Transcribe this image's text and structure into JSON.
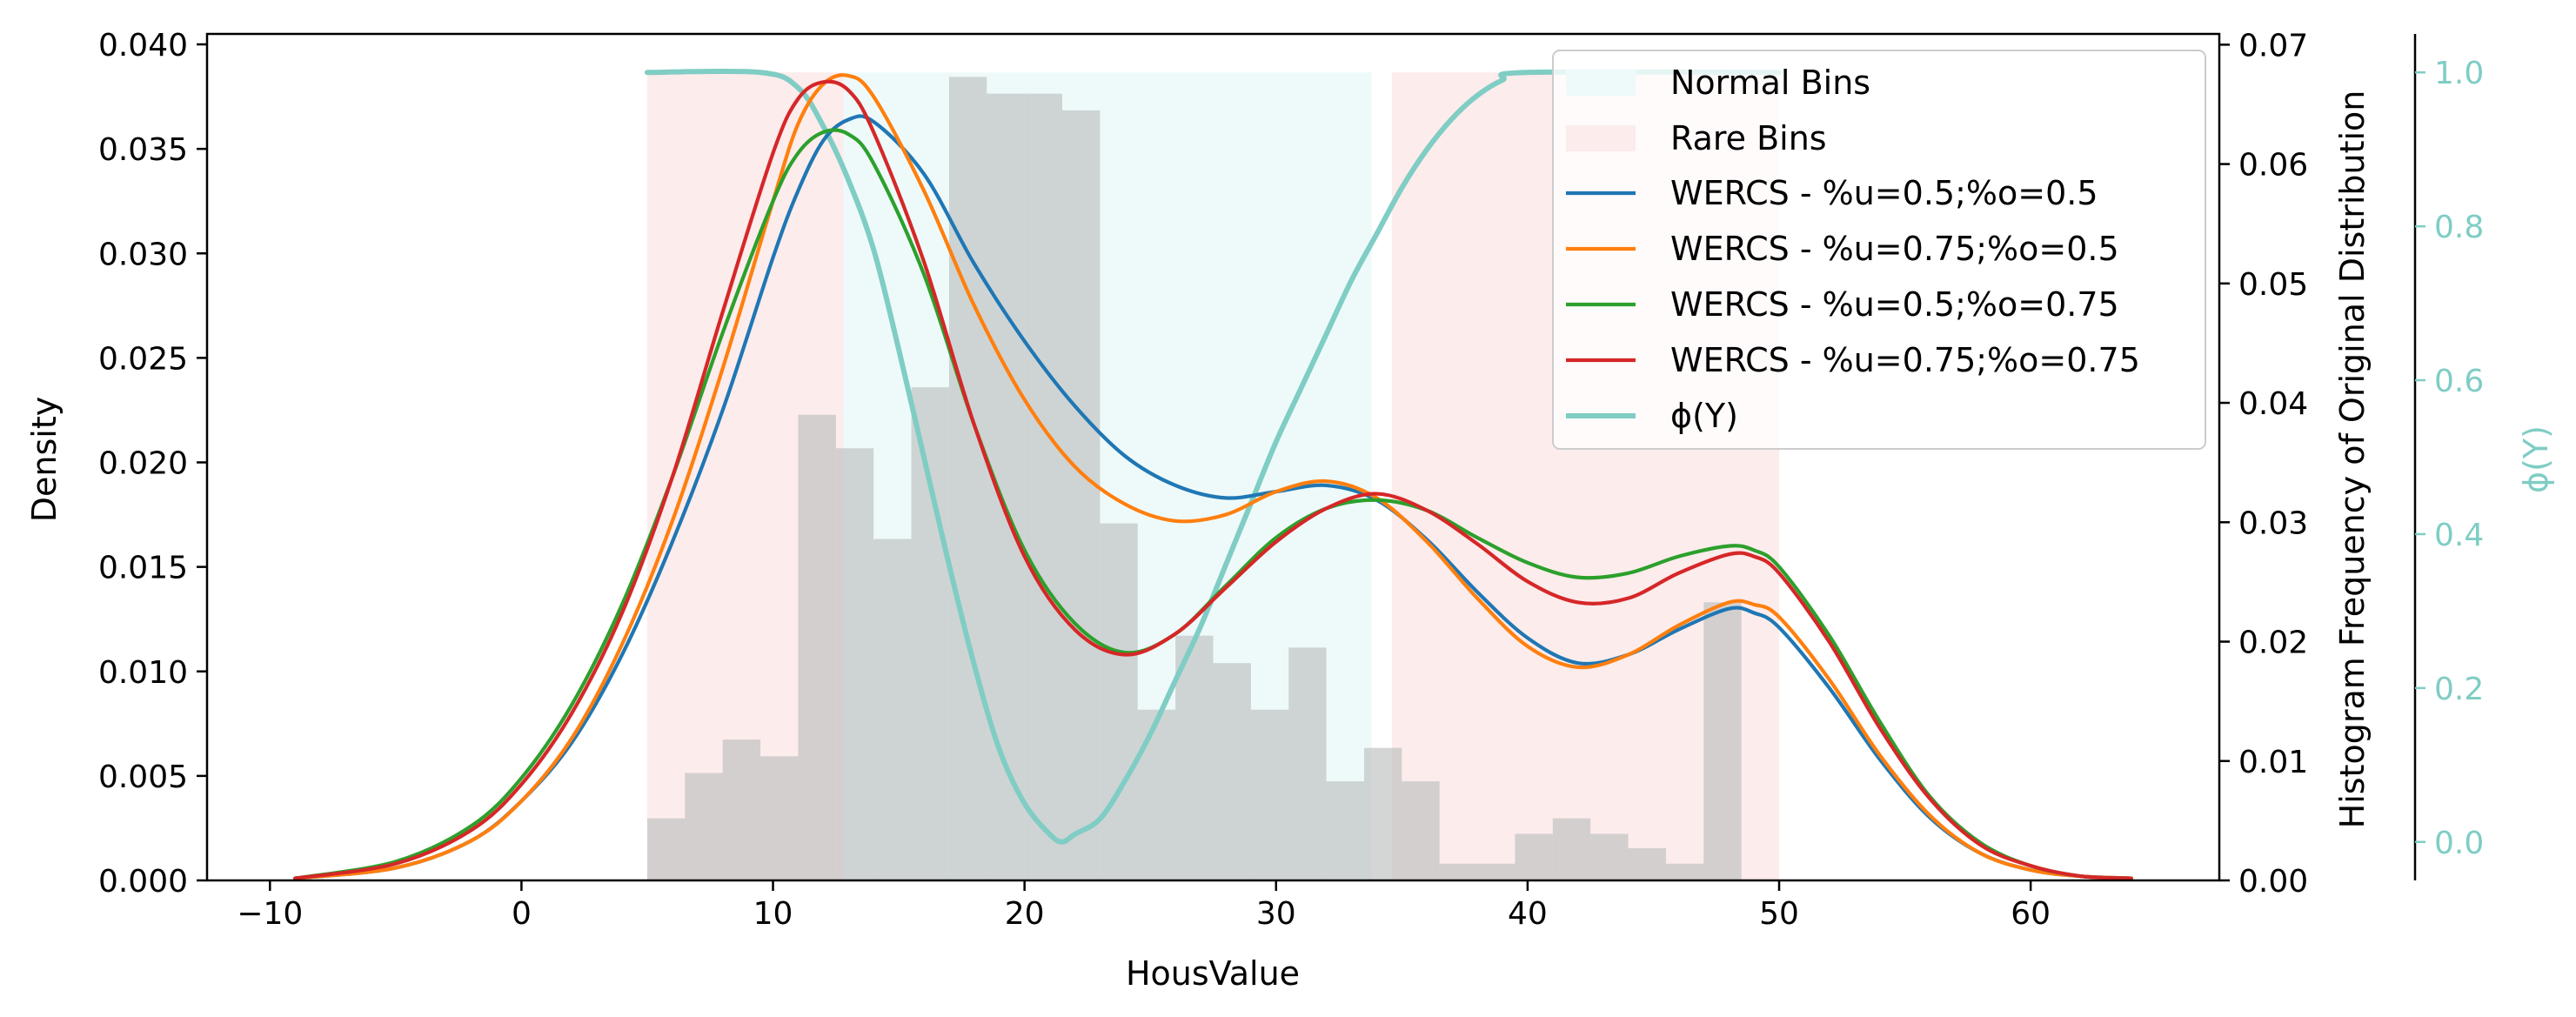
{
  "chart_data": {
    "type": "line",
    "xlabel": "HousValue",
    "ylabel": "Density",
    "y2label": "Histogram Frequency of Original Distribution",
    "y3label": "ϕ(Y)",
    "xlim": [
      -12.5,
      67.5
    ],
    "ylim": [
      0,
      0.0405
    ],
    "y2lim": [
      0,
      0.0709
    ],
    "y3lim": [
      -0.05,
      1.05
    ],
    "x_ticks": [
      -10,
      0,
      10,
      20,
      30,
      40,
      50,
      60
    ],
    "y_ticks": [
      "0.000",
      "0.005",
      "0.010",
      "0.015",
      "0.020",
      "0.025",
      "0.030",
      "0.035",
      "0.040"
    ],
    "y2_ticks": [
      "0.00",
      "0.01",
      "0.02",
      "0.03",
      "0.04",
      "0.05",
      "0.06",
      "0.07"
    ],
    "y3_ticks": [
      "0.0",
      "0.2",
      "0.4",
      "0.6",
      "0.8",
      "1.0"
    ],
    "legend_position": "top-right",
    "regions": [
      {
        "name": "Rare Bins",
        "x0": 5,
        "x1": 12.8,
        "color": "#fdecec"
      },
      {
        "name": "Normal Bins",
        "x0": 12.8,
        "x1": 33.8,
        "color": "#eefafa"
      },
      {
        "name": "Rare Bins",
        "x0": 34.6,
        "x1": 50,
        "color": "#fdecec"
      }
    ],
    "legend_labels": {
      "normal": "Normal Bins",
      "rare": "Rare Bins"
    },
    "histogram": {
      "bin_width": 1.5,
      "start": 5,
      "values": [
        0.0052,
        0.009,
        0.0118,
        0.0104,
        0.039,
        0.0362,
        0.0286,
        0.0413,
        0.0673,
        0.0659,
        0.0659,
        0.0645,
        0.0299,
        0.0143,
        0.0205,
        0.0182,
        0.0143,
        0.0195,
        0.0083,
        0.0111,
        0.0083,
        0.0014,
        0.0014,
        0.0039,
        0.0052,
        0.0039,
        0.0027,
        0.0014,
        0.0233
      ]
    },
    "series": [
      {
        "name": "WERCS - %u=0.5;%o=0.5",
        "color": "#1f77b4",
        "x": [
          -9,
          -5,
          -2,
          0,
          2,
          4,
          6,
          8,
          10,
          11,
          12,
          13,
          14,
          16,
          18,
          20,
          22,
          24,
          26,
          28,
          30,
          32,
          34,
          36,
          38,
          40,
          42,
          44,
          46,
          48,
          49,
          50,
          52,
          54,
          56,
          58,
          60,
          62,
          64
        ],
        "y": [
          0.0001,
          0.0006,
          0.0019,
          0.0038,
          0.0066,
          0.0108,
          0.0162,
          0.0225,
          0.0298,
          0.033,
          0.0354,
          0.0364,
          0.0363,
          0.0338,
          0.0295,
          0.0258,
          0.0227,
          0.0203,
          0.0189,
          0.0183,
          0.0186,
          0.0189,
          0.0182,
          0.0163,
          0.0138,
          0.0116,
          0.0104,
          0.0108,
          0.012,
          0.013,
          0.0128,
          0.0121,
          0.0092,
          0.0058,
          0.003,
          0.0013,
          0.0005,
          0.0002,
          0.0001
        ]
      },
      {
        "name": "WERCS - %u=0.75;%o=0.5",
        "color": "#ff7f0e",
        "x": [
          -9,
          -5,
          -2,
          0,
          2,
          4,
          6,
          8,
          10,
          11,
          12,
          13,
          14,
          16,
          18,
          20,
          22,
          24,
          26,
          28,
          30,
          32,
          34,
          36,
          38,
          40,
          42,
          44,
          46,
          48,
          49,
          50,
          52,
          54,
          56,
          58,
          60,
          62,
          64
        ],
        "y": [
          0.0001,
          0.0006,
          0.0019,
          0.0038,
          0.0068,
          0.0113,
          0.0172,
          0.0245,
          0.0325,
          0.0362,
          0.0381,
          0.0385,
          0.0375,
          0.033,
          0.0275,
          0.023,
          0.0198,
          0.018,
          0.0172,
          0.0175,
          0.0186,
          0.0191,
          0.0183,
          0.0162,
          0.0135,
          0.0112,
          0.0102,
          0.0108,
          0.0122,
          0.0133,
          0.0132,
          0.0126,
          0.0096,
          0.006,
          0.0031,
          0.0013,
          0.0005,
          0.0002,
          0.0001
        ]
      },
      {
        "name": "WERCS - %u=0.5;%o=0.75",
        "color": "#2ca02c",
        "x": [
          -9,
          -5,
          -2,
          0,
          2,
          4,
          6,
          8,
          10,
          11,
          12,
          13,
          14,
          16,
          18,
          20,
          22,
          24,
          26,
          28,
          30,
          32,
          34,
          36,
          38,
          40,
          42,
          44,
          46,
          48,
          49,
          50,
          52,
          54,
          56,
          58,
          60,
          62,
          64
        ],
        "y": [
          0.0001,
          0.0009,
          0.0026,
          0.0049,
          0.0084,
          0.0132,
          0.0193,
          0.0262,
          0.0325,
          0.0348,
          0.0358,
          0.0357,
          0.0343,
          0.029,
          0.0218,
          0.0158,
          0.0123,
          0.0109,
          0.0118,
          0.0141,
          0.0164,
          0.0178,
          0.0182,
          0.0177,
          0.0164,
          0.0152,
          0.0145,
          0.0147,
          0.0155,
          0.016,
          0.0158,
          0.015,
          0.0117,
          0.0076,
          0.004,
          0.0018,
          0.0007,
          0.0002,
          0.0001
        ]
      },
      {
        "name": "WERCS - %u=0.75;%o=0.75",
        "color": "#d62728",
        "x": [
          -9,
          -5,
          -2,
          0,
          2,
          4,
          6,
          8,
          10,
          11,
          12,
          13,
          14,
          16,
          18,
          20,
          22,
          24,
          26,
          28,
          30,
          32,
          34,
          36,
          38,
          40,
          42,
          44,
          46,
          48,
          49,
          50,
          52,
          54,
          56,
          58,
          60,
          62,
          64
        ],
        "y": [
          0.0001,
          0.0008,
          0.0024,
          0.0046,
          0.008,
          0.0128,
          0.0193,
          0.0272,
          0.0348,
          0.0374,
          0.0382,
          0.0378,
          0.0358,
          0.0296,
          0.0218,
          0.0155,
          0.012,
          0.0108,
          0.0118,
          0.014,
          0.0162,
          0.0178,
          0.0185,
          0.0177,
          0.0161,
          0.0143,
          0.0133,
          0.0135,
          0.0147,
          0.0156,
          0.0155,
          0.0147,
          0.0114,
          0.0073,
          0.0039,
          0.0017,
          0.0007,
          0.0002,
          0.0001
        ]
      },
      {
        "name": "ϕ(Y)",
        "color": "#7fcdc4",
        "axis": "phi",
        "x": [
          5,
          9.5,
          11,
          12,
          13,
          14,
          15,
          16,
          17,
          18,
          19,
          20,
          21,
          21.5,
          22,
          23,
          24,
          25,
          26,
          27,
          28,
          29,
          30,
          31,
          32,
          33,
          34,
          35,
          36,
          37,
          38,
          39,
          40,
          50
        ],
        "y": [
          1.0,
          1.0,
          0.98,
          0.93,
          0.86,
          0.77,
          0.64,
          0.5,
          0.36,
          0.23,
          0.12,
          0.05,
          0.01,
          0.0,
          0.01,
          0.03,
          0.08,
          0.14,
          0.21,
          0.28,
          0.36,
          0.44,
          0.52,
          0.59,
          0.66,
          0.73,
          0.79,
          0.85,
          0.9,
          0.94,
          0.97,
          0.99,
          1.0,
          1.0
        ]
      }
    ]
  }
}
